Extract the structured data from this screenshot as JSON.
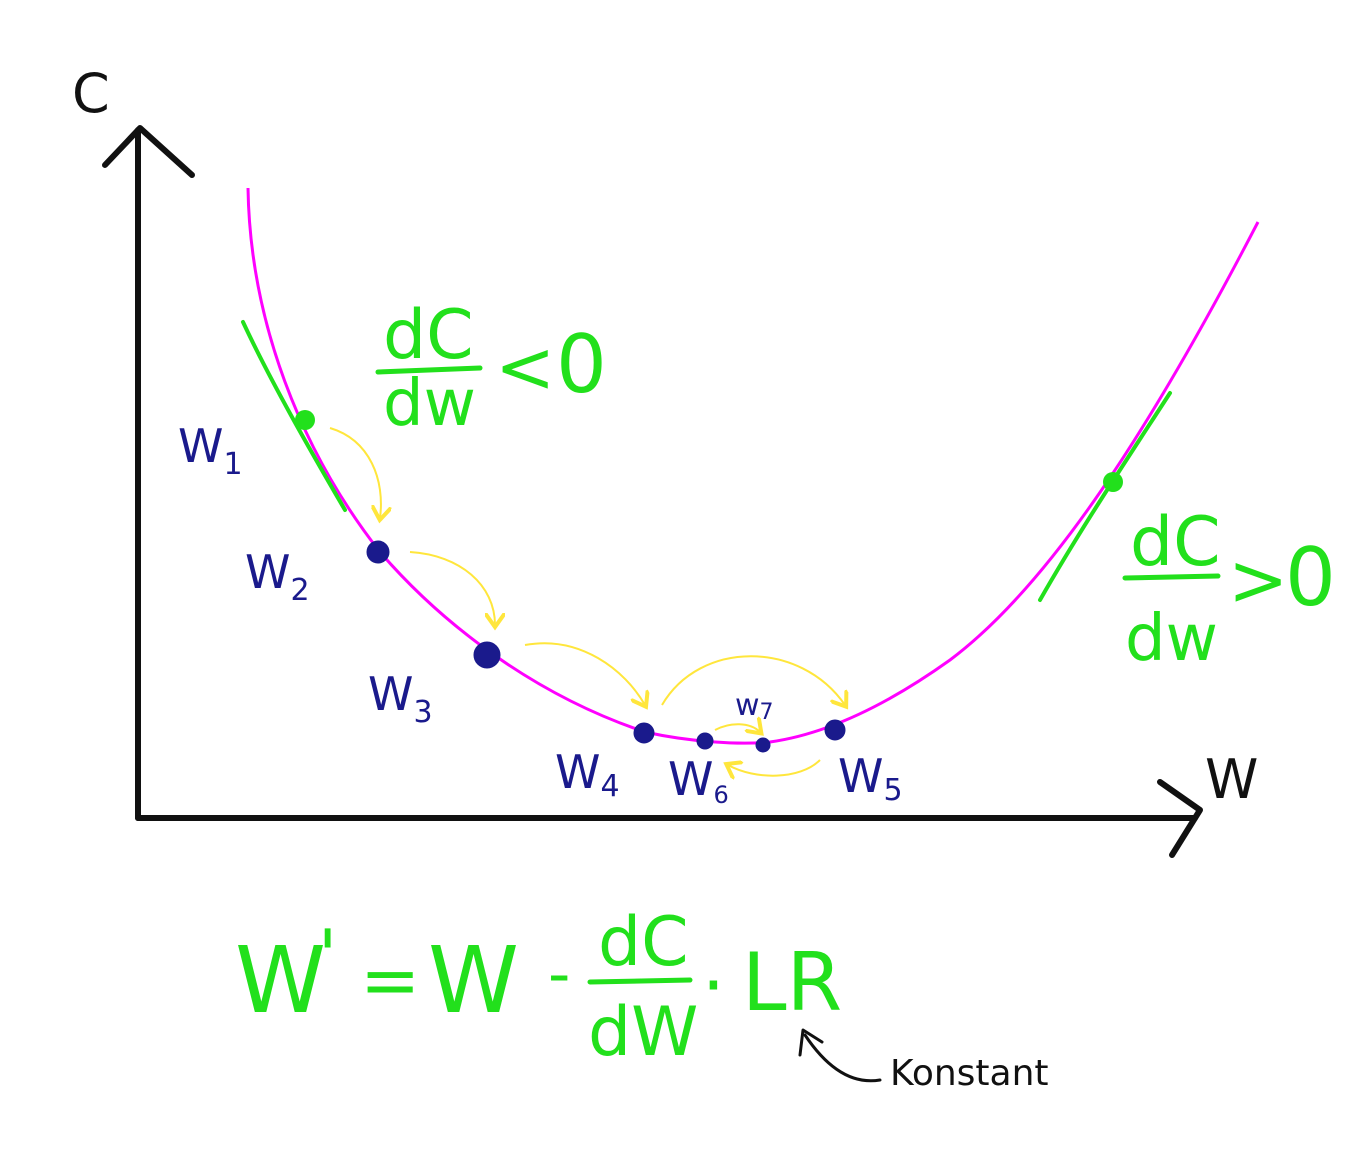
{
  "axes": {
    "y_label": "C",
    "x_label": "W"
  },
  "weights": [
    {
      "id": "w1",
      "label": "W",
      "sub": "1"
    },
    {
      "id": "w2",
      "label": "W",
      "sub": "2"
    },
    {
      "id": "w3",
      "label": "W",
      "sub": "3"
    },
    {
      "id": "w4",
      "label": "W",
      "sub": "4"
    },
    {
      "id": "w5",
      "label": "W",
      "sub": "5"
    },
    {
      "id": "w6",
      "label": "W",
      "sub": "6"
    },
    {
      "id": "w7",
      "label": "w",
      "sub": "7"
    }
  ],
  "slopes": {
    "left": {
      "num": "dC",
      "den": "dw",
      "rel": "<",
      "val": "0"
    },
    "right": {
      "num": "dC",
      "den": "dw",
      "rel": ">",
      "val": "0"
    }
  },
  "formula": {
    "lhs": "W",
    "prime": "'",
    "eq": "=",
    "w": "W",
    "minus": "-",
    "num": "dC",
    "den": "dW",
    "dot": "·",
    "lr": "LR"
  },
  "annotation": "Konstant",
  "colors": {
    "curve": "#ff00ff",
    "tangent": "#22e01c",
    "point": "#1a1a8c",
    "arrow": "#ffe63c",
    "axis": "#111111"
  }
}
